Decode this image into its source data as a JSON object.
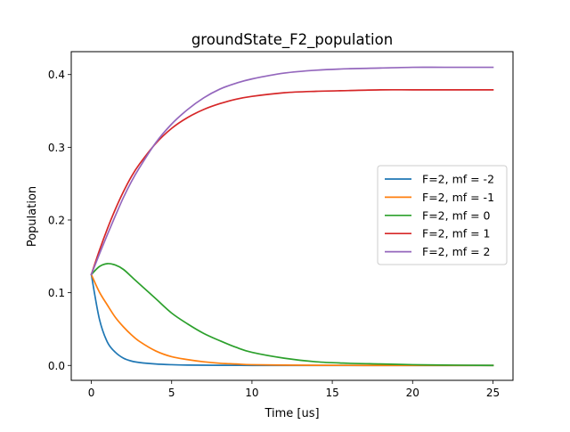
{
  "chart_data": {
    "type": "line",
    "title": "groundState_F2_population",
    "xlabel": "Time [us]",
    "ylabel": "Population",
    "xlim": [
      -1.25,
      26.25
    ],
    "ylim": [
      -0.0205,
      0.4315
    ],
    "xticks": [
      0,
      5,
      10,
      15,
      20,
      25
    ],
    "xtick_labels": [
      "0",
      "5",
      "10",
      "15",
      "20",
      "25"
    ],
    "yticks": [
      0.0,
      0.1,
      0.2,
      0.3,
      0.4
    ],
    "ytick_labels": [
      "0.0",
      "0.1",
      "0.2",
      "0.3",
      "0.4"
    ],
    "grid": false,
    "legend_position": "center-right",
    "x": [
      0,
      0.5,
      1,
      1.5,
      2,
      2.5,
      3,
      4,
      5,
      6,
      7,
      8,
      9,
      10,
      12,
      14,
      16,
      18,
      20,
      22,
      25
    ],
    "series": [
      {
        "name": "F=2, mf = -2",
        "color": "#1f77b4",
        "values": [
          0.125,
          0.064,
          0.032,
          0.018,
          0.01,
          0.006,
          0.004,
          0.002,
          0.001,
          0.0005,
          0.0003,
          0.0002,
          0.0001,
          0.0,
          0.0,
          0.0,
          0.0,
          0.0,
          0.0,
          0.0,
          0.0
        ]
      },
      {
        "name": "F=2, mf = -1",
        "color": "#ff7f0e",
        "values": [
          0.125,
          0.101,
          0.083,
          0.066,
          0.053,
          0.042,
          0.033,
          0.02,
          0.012,
          0.008,
          0.005,
          0.003,
          0.002,
          0.001,
          0.0005,
          0.0002,
          0.0001,
          0.0,
          0.0,
          0.0,
          0.0
        ]
      },
      {
        "name": "F=2, mf = 0",
        "color": "#2ca02c",
        "values": [
          0.125,
          0.136,
          0.14,
          0.138,
          0.132,
          0.122,
          0.112,
          0.092,
          0.072,
          0.057,
          0.044,
          0.034,
          0.025,
          0.018,
          0.01,
          0.005,
          0.003,
          0.002,
          0.001,
          0.0005,
          0.0
        ]
      },
      {
        "name": "F=2, mf = 1",
        "color": "#d62728",
        "values": [
          0.125,
          0.158,
          0.188,
          0.215,
          0.239,
          0.26,
          0.277,
          0.305,
          0.326,
          0.341,
          0.352,
          0.36,
          0.366,
          0.37,
          0.375,
          0.377,
          0.378,
          0.379,
          0.379,
          0.379,
          0.379
        ]
      },
      {
        "name": "F=2, mf = 2",
        "color": "#9467bd",
        "values": [
          0.125,
          0.153,
          0.18,
          0.206,
          0.231,
          0.253,
          0.272,
          0.306,
          0.332,
          0.352,
          0.368,
          0.38,
          0.388,
          0.394,
          0.402,
          0.406,
          0.408,
          0.409,
          0.41,
          0.41,
          0.41
        ]
      }
    ]
  }
}
